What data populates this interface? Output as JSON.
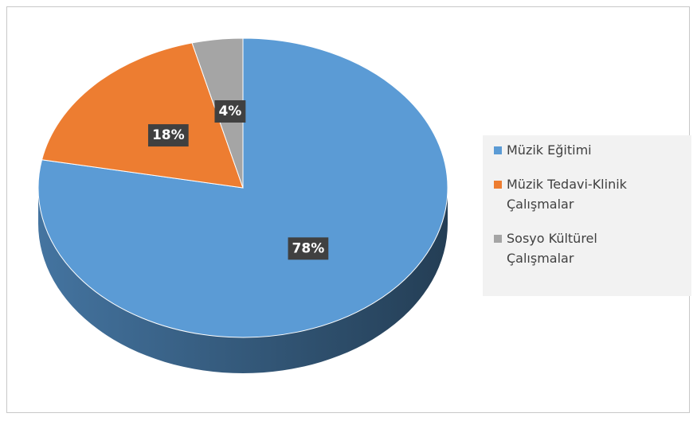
{
  "chart_data": {
    "type": "pie",
    "three_d": true,
    "categories": [
      "Müzik Eğitimi",
      "Müzik Tedavi-Klinik Çalışmalar",
      "Sosyo Kültürel Çalışmalar"
    ],
    "values": [
      78,
      18,
      4
    ],
    "value_labels": [
      "78%",
      "18%",
      "4%"
    ],
    "colors": [
      "#5b9bd5",
      "#ed7d31",
      "#a5a5a5"
    ],
    "legend": "right"
  }
}
